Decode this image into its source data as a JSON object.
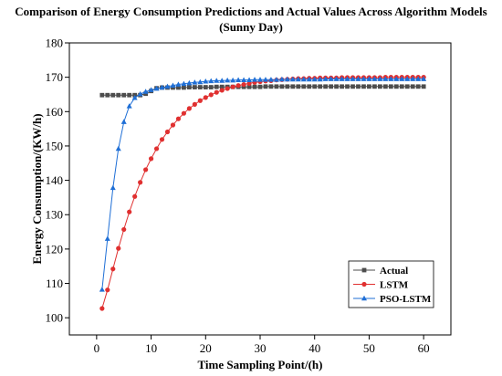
{
  "chart_data": {
    "type": "line",
    "title": "Comparison of Energy Consumption Predictions and Actual Values Across Algorithm Models",
    "subtitle": "(Sunny Day)",
    "xlabel": "Time Sampling Point/(h)",
    "ylabel": "Energy Consumption/(KW/h)",
    "xlim": [
      -5,
      65
    ],
    "ylim": [
      95,
      180
    ],
    "xticks": [
      0,
      10,
      20,
      30,
      40,
      50,
      60
    ],
    "yticks": [
      100,
      110,
      120,
      130,
      140,
      150,
      160,
      170,
      180
    ],
    "grid": false,
    "legend_position": "bottom-right",
    "x": [
      1,
      2,
      3,
      4,
      5,
      6,
      7,
      8,
      9,
      10,
      11,
      12,
      13,
      14,
      15,
      16,
      17,
      18,
      19,
      20,
      21,
      22,
      23,
      24,
      25,
      26,
      27,
      28,
      29,
      30,
      31,
      32,
      33,
      34,
      35,
      36,
      37,
      38,
      39,
      40,
      41,
      42,
      43,
      44,
      45,
      46,
      47,
      48,
      49,
      50,
      51,
      52,
      53,
      54,
      55,
      56,
      57,
      58,
      59,
      60
    ],
    "series": [
      {
        "name": "Actual",
        "color": "#4d4d4d",
        "marker": "square",
        "values": [
          164.8,
          164.8,
          164.8,
          164.8,
          164.8,
          164.8,
          164.8,
          164.8,
          165.2,
          166.0,
          166.8,
          167.0,
          167.0,
          167.0,
          167.0,
          167.0,
          167.1,
          167.1,
          167.1,
          167.1,
          167.1,
          167.2,
          167.2,
          167.2,
          167.2,
          167.2,
          167.2,
          167.2,
          167.2,
          167.2,
          167.3,
          167.3,
          167.3,
          167.3,
          167.3,
          167.3,
          167.3,
          167.3,
          167.3,
          167.3,
          167.3,
          167.3,
          167.3,
          167.3,
          167.3,
          167.3,
          167.3,
          167.3,
          167.3,
          167.3,
          167.3,
          167.3,
          167.3,
          167.3,
          167.3,
          167.3,
          167.3,
          167.3,
          167.3,
          167.3
        ]
      },
      {
        "name": "LSTM",
        "color": "#e03030",
        "marker": "circle",
        "values": [
          102.7,
          108.1,
          114.2,
          120.2,
          125.7,
          130.8,
          135.3,
          139.4,
          143.1,
          146.3,
          149.2,
          151.9,
          154.1,
          156.1,
          157.9,
          159.5,
          160.9,
          162.1,
          163.2,
          164.1,
          164.9,
          165.6,
          166.2,
          166.7,
          167.2,
          167.6,
          167.9,
          168.2,
          168.5,
          168.7,
          168.9,
          169.0,
          169.2,
          169.3,
          169.4,
          169.5,
          169.6,
          169.6,
          169.7,
          169.7,
          169.8,
          169.8,
          169.8,
          169.8,
          169.9,
          169.9,
          169.9,
          169.9,
          169.9,
          169.9,
          169.9,
          169.9,
          170.0,
          170.0,
          170.0,
          170.0,
          170.0,
          170.0,
          170.0,
          170.0
        ]
      },
      {
        "name": "PSO-LSTM",
        "color": "#1f6fd6",
        "marker": "triangle",
        "values": [
          108.2,
          123.0,
          137.8,
          149.2,
          157.0,
          161.6,
          164.0,
          165.1,
          165.8,
          166.3,
          166.7,
          167.0,
          167.3,
          167.6,
          167.9,
          168.1,
          168.3,
          168.5,
          168.6,
          168.8,
          168.9,
          169.0,
          169.0,
          169.1,
          169.1,
          169.2,
          169.2,
          169.2,
          169.3,
          169.3,
          169.3,
          169.3,
          169.3,
          169.4,
          169.4,
          169.4,
          169.4,
          169.4,
          169.4,
          169.4,
          169.4,
          169.5,
          169.5,
          169.5,
          169.5,
          169.5,
          169.5,
          169.5,
          169.5,
          169.5,
          169.5,
          169.5,
          169.5,
          169.5,
          169.5,
          169.5,
          169.5,
          169.5,
          169.5,
          169.5
        ]
      }
    ]
  }
}
